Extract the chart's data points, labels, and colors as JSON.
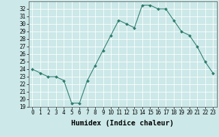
{
  "x": [
    0,
    1,
    2,
    3,
    4,
    5,
    6,
    7,
    8,
    9,
    10,
    11,
    12,
    13,
    14,
    15,
    16,
    17,
    18,
    19,
    20,
    21,
    22,
    23
  ],
  "y": [
    24.0,
    23.5,
    23.0,
    23.0,
    22.5,
    19.5,
    19.5,
    22.5,
    24.5,
    26.5,
    28.5,
    30.5,
    30.0,
    29.5,
    32.5,
    32.5,
    32.0,
    32.0,
    30.5,
    29.0,
    28.5,
    27.0,
    25.0,
    23.5
  ],
  "ylim": [
    19,
    33
  ],
  "xlim": [
    -0.5,
    23.5
  ],
  "yticks": [
    19,
    20,
    21,
    22,
    23,
    24,
    25,
    26,
    27,
    28,
    29,
    30,
    31,
    32
  ],
  "xticks": [
    0,
    1,
    2,
    3,
    4,
    5,
    6,
    7,
    8,
    9,
    10,
    11,
    12,
    13,
    14,
    15,
    16,
    17,
    18,
    19,
    20,
    21,
    22,
    23
  ],
  "xlabel": "Humidex (Indice chaleur)",
  "line_color": "#2e7d6e",
  "marker": "D",
  "marker_size": 2.0,
  "bg_color": "#cce8e8",
  "grid_color": "#ffffff",
  "tick_fontsize": 5.5,
  "xlabel_fontsize": 7.5
}
